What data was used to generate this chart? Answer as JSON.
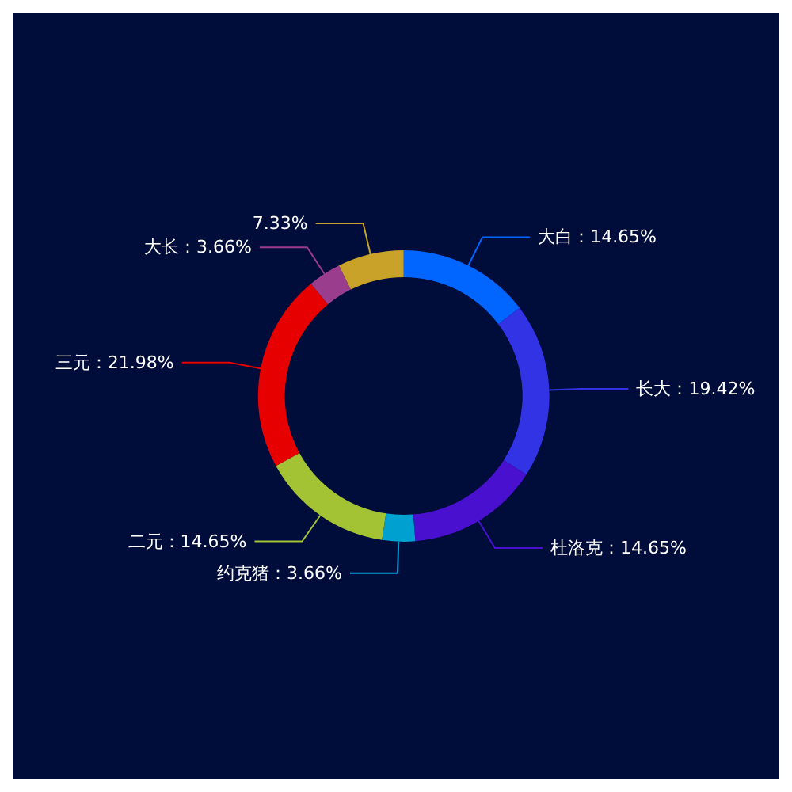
{
  "chart_data": {
    "type": "donut",
    "categories": [
      "大白",
      "长大",
      "杜洛克",
      "约克猪",
      "二元",
      "三元",
      "大长",
      null
    ],
    "values": [
      14.65,
      19.42,
      14.65,
      3.66,
      14.65,
      21.98,
      3.66,
      7.33
    ],
    "value_labels": [
      "14.65%",
      "19.42%",
      "14.65%",
      "3.66%",
      "14.65%",
      "21.98%",
      "3.66%",
      "7.33%"
    ],
    "colors": [
      "#0066ff",
      "#3333e6",
      "#4a10d0",
      "#00a0d0",
      "#a3c234",
      "#e60000",
      "#993d8c",
      "#c9a229"
    ],
    "legend": false
  }
}
